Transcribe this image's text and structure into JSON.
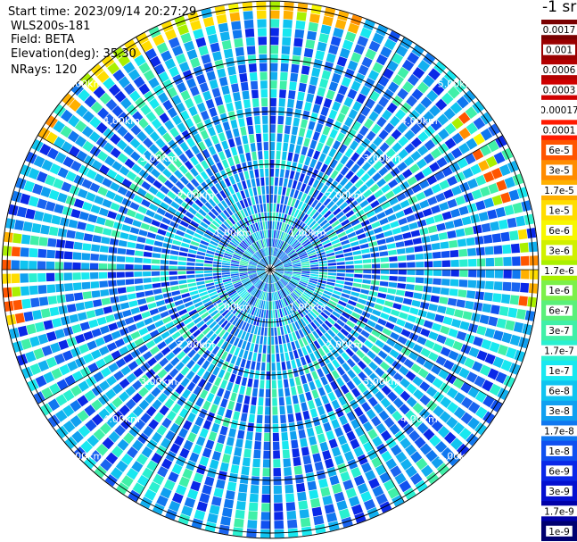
{
  "info": {
    "start_time": "Start time: 2023/09/14 20:27:29",
    "device": "WLS200s-181",
    "field": "Field: BETA",
    "elevation": "Elevation(deg): 35.30",
    "nrays": "NRays: 120"
  },
  "colorbar": {
    "unit": "-1 sr",
    "labels": [
      "0.0017",
      "0.001",
      "0.0006",
      "0.0003",
      "0.00017",
      "0.0001",
      "6e-5",
      "3e-5",
      "1.7e-5",
      "1e-5",
      "6e-6",
      "3e-6",
      "1.7e-6",
      "1e-6",
      "6e-7",
      "3e-7",
      "1.7e-7",
      "1e-7",
      "6e-8",
      "3e-8",
      "1.7e-8",
      "1e-8",
      "6e-9",
      "3e-9",
      "1.7e-9",
      "1e-9"
    ],
    "colors": [
      "#7a0000",
      "#9a0000",
      "#b40000",
      "#d00000",
      "#ffffff",
      "#ff1a00",
      "#ff5500",
      "#ff8c00",
      "#ffb000",
      "#ffdd00",
      "#f7f700",
      "#d0f000",
      "#aaf000",
      "#7cf04a",
      "#5af07a",
      "#40f0a8",
      "#2af0d0",
      "#18e8f0",
      "#10c4f0",
      "#10a0f0",
      "#1078f0",
      "#1050f0",
      "#0a28e8",
      "#0410d0",
      "#0000a8",
      "#000070"
    ]
  },
  "chart_data": {
    "type": "ppi",
    "rings": [
      {
        "range_km": 1.0,
        "label": "1.00km"
      },
      {
        "range_km": 2.0,
        "label": "2.00km"
      },
      {
        "range_km": 3.0,
        "label": "3.00km"
      },
      {
        "range_km": 4.0,
        "label": "4.00km"
      },
      {
        "range_km": 5.0,
        "label": "5.00km"
      }
    ],
    "max_range_km": 5.1,
    "nrays": 120,
    "spoke_step_deg": 30,
    "high_backscatter_bands": [
      {
        "azimuth_from_deg": 300,
        "azimuth_to_deg": 360,
        "range_km": 4.9,
        "level": "1e-5"
      },
      {
        "azimuth_from_deg": 0,
        "azimuth_to_deg": 20,
        "range_km": 4.9,
        "level": "1.7e-5"
      },
      {
        "azimuth_from_deg": 50,
        "azimuth_to_deg": 75,
        "range_km": 4.6,
        "level": "6e-5"
      },
      {
        "azimuth_from_deg": 80,
        "azimuth_to_deg": 100,
        "range_km": 4.9,
        "level": "6e-5"
      },
      {
        "azimuth_from_deg": 255,
        "azimuth_to_deg": 280,
        "range_km": 5.0,
        "level": "6e-5"
      }
    ]
  }
}
